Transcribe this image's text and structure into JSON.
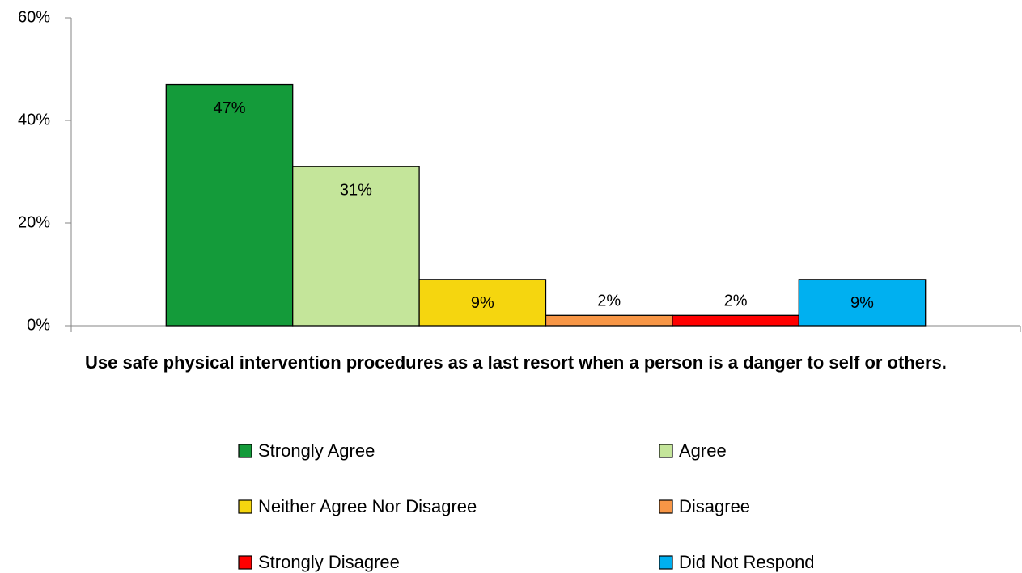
{
  "chart_data": {
    "type": "bar",
    "categories": [
      "Use safe physical intervention procedures as a last resort when a person is a danger to self or others."
    ],
    "series": [
      {
        "name": "Strongly Agree",
        "color": "#149b3a",
        "values": [
          47
        ],
        "value_labels": [
          "47%"
        ]
      },
      {
        "name": "Agree",
        "color": "#c4e59a",
        "values": [
          31
        ],
        "value_labels": [
          "31%"
        ]
      },
      {
        "name": "Neither Agree Nor Disagree",
        "color": "#f5d60f",
        "values": [
          9
        ],
        "value_labels": [
          "9%"
        ]
      },
      {
        "name": "Disagree",
        "color": "#f79646",
        "values": [
          2
        ],
        "value_labels": [
          "2%"
        ]
      },
      {
        "name": "Strongly Disagree",
        "color": "#ff0000",
        "values": [
          2
        ],
        "value_labels": [
          "2%"
        ]
      },
      {
        "name": "Did Not Respond",
        "color": "#00b0f0",
        "values": [
          9
        ],
        "value_labels": [
          "9%"
        ]
      }
    ],
    "ylim": [
      0,
      60
    ],
    "yticks": [
      {
        "value": 0,
        "label": "0%"
      },
      {
        "value": 20,
        "label": "20%"
      },
      {
        "value": 40,
        "label": "40%"
      },
      {
        "value": 60,
        "label": "60%"
      }
    ],
    "grid": false,
    "legend": "bottom"
  }
}
